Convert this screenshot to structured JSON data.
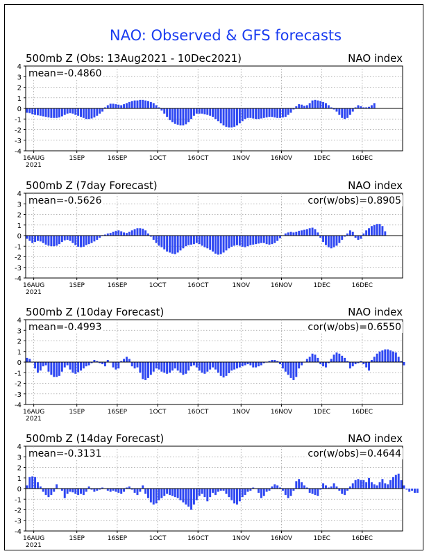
{
  "title": "NAO: Observed & GFS forecasts",
  "colors": {
    "bar": "#2f48f2",
    "title": "#1a3cf0",
    "grid": "#9a9a9a",
    "zero_line": "#000000"
  },
  "chart_data": [
    {
      "type": "bar",
      "panel_title": "500mb Z (Obs: 13Aug2021 - 10Dec2021)",
      "index_label": "NAO index",
      "mean_label": "mean=-0.4860",
      "cor_label": "",
      "x_start": "2021-08-13",
      "x_end": "2021-12-31",
      "ylim": [
        -4,
        4
      ],
      "yticks": [
        "4",
        "3",
        "2",
        "1",
        "0",
        "-1",
        "-2",
        "-3",
        "-4"
      ],
      "xtick_labels": [
        "16AUG",
        "1SEP",
        "16SEP",
        "1OCT",
        "16OCT",
        "1NOV",
        "16NOV",
        "1DEC",
        "16DEC"
      ],
      "x_year_label": "2021",
      "grid": true,
      "values": [
        -0.4,
        -0.45,
        -0.55,
        -0.6,
        -0.65,
        -0.7,
        -0.75,
        -0.8,
        -0.85,
        -0.9,
        -0.9,
        -0.9,
        -0.85,
        -0.75,
        -0.6,
        -0.5,
        -0.45,
        -0.5,
        -0.6,
        -0.7,
        -0.8,
        -0.9,
        -1.0,
        -1.0,
        -0.95,
        -0.85,
        -0.7,
        -0.5,
        -0.3,
        0.1,
        0.3,
        0.45,
        0.45,
        0.4,
        0.35,
        0.3,
        0.4,
        0.5,
        0.6,
        0.7,
        0.75,
        0.75,
        0.8,
        0.8,
        0.75,
        0.7,
        0.6,
        0.5,
        0.3,
        0.1,
        -0.2,
        -0.5,
        -0.8,
        -1.1,
        -1.3,
        -1.45,
        -1.55,
        -1.6,
        -1.6,
        -1.5,
        -1.3,
        -1.0,
        -0.7,
        -0.5,
        -0.5,
        -0.5,
        -0.55,
        -0.6,
        -0.7,
        -0.8,
        -1.0,
        -1.2,
        -1.4,
        -1.6,
        -1.75,
        -1.8,
        -1.8,
        -1.75,
        -1.6,
        -1.4,
        -1.2,
        -1.0,
        -0.9,
        -0.9,
        -0.95,
        -1.0,
        -1.0,
        -0.95,
        -0.9,
        -0.85,
        -0.8,
        -0.8,
        -0.85,
        -0.9,
        -0.9,
        -0.85,
        -0.8,
        -0.6,
        -0.4,
        -0.1,
        0.2,
        0.4,
        0.35,
        0.25,
        0.3,
        0.5,
        0.75,
        0.8,
        0.75,
        0.7,
        0.6,
        0.5,
        0.3,
        0.1,
        -0.1,
        -0.3,
        -0.6,
        -0.9,
        -1.0,
        -0.9,
        -0.6,
        -0.3,
        0.1,
        0.3,
        0.2,
        0.1,
        0.1,
        0.15,
        0.3,
        0.5
      ]
    },
    {
      "type": "bar",
      "panel_title": "500mb Z (7day Forecast)",
      "index_label": "NAO index",
      "mean_label": "mean=-0.5626",
      "cor_label": "cor(w/obs)=0.8905",
      "x_start": "2021-08-13",
      "x_end": "2021-12-31",
      "ylim": [
        -4,
        4
      ],
      "yticks": [
        "4",
        "3",
        "2",
        "1",
        "0",
        "-1",
        "-2",
        "-3",
        "-4"
      ],
      "xtick_labels": [
        "16AUG",
        "1SEP",
        "16SEP",
        "1OCT",
        "16OCT",
        "1NOV",
        "16NOV",
        "1DEC",
        "16DEC"
      ],
      "x_year_label": "2021",
      "grid": true,
      "values": [
        -0.3,
        -0.5,
        -0.7,
        -0.6,
        -0.5,
        -0.55,
        -0.7,
        -0.85,
        -0.95,
        -1.0,
        -1.0,
        -0.95,
        -0.8,
        -0.6,
        -0.45,
        -0.4,
        -0.5,
        -0.7,
        -0.9,
        -1.05,
        -1.1,
        -1.05,
        -0.9,
        -0.8,
        -0.7,
        -0.55,
        -0.4,
        -0.2,
        0.05,
        0.1,
        0.2,
        0.25,
        0.35,
        0.45,
        0.5,
        0.4,
        0.3,
        0.25,
        0.35,
        0.5,
        0.6,
        0.7,
        0.7,
        0.65,
        0.5,
        0.2,
        -0.1,
        -0.4,
        -0.7,
        -0.95,
        -1.1,
        -1.3,
        -1.5,
        -1.6,
        -1.7,
        -1.75,
        -1.6,
        -1.4,
        -1.2,
        -1.0,
        -0.9,
        -0.85,
        -0.8,
        -0.7,
        -0.8,
        -0.95,
        -1.1,
        -1.2,
        -1.35,
        -1.5,
        -1.7,
        -1.8,
        -1.75,
        -1.6,
        -1.4,
        -1.2,
        -1.05,
        -0.95,
        -0.9,
        -0.95,
        -1.05,
        -1.1,
        -1.0,
        -0.9,
        -0.85,
        -0.8,
        -0.75,
        -0.7,
        -0.7,
        -0.8,
        -0.85,
        -0.8,
        -0.7,
        -0.5,
        -0.25,
        0.0,
        0.2,
        0.3,
        0.35,
        0.3,
        0.35,
        0.45,
        0.5,
        0.55,
        0.6,
        0.7,
        0.75,
        0.6,
        0.3,
        -0.2,
        -0.6,
        -0.9,
        -1.1,
        -1.2,
        -1.1,
        -0.95,
        -0.7,
        -0.4,
        -0.1,
        0.2,
        0.5,
        0.35,
        -0.2,
        -0.4,
        -0.3,
        0.2,
        0.5,
        0.7,
        0.9,
        1.0,
        1.1,
        1.1,
        0.9,
        0.4
      ]
    },
    {
      "type": "bar",
      "panel_title": "500mb Z (10day Forecast)",
      "index_label": "NAO index",
      "mean_label": "mean=-0.4993",
      "cor_label": "cor(w/obs)=0.6550",
      "x_start": "2021-08-13",
      "x_end": "2021-12-31",
      "ylim": [
        -4,
        4
      ],
      "yticks": [
        "4",
        "3",
        "2",
        "1",
        "0",
        "-1",
        "-2",
        "-3",
        "-4"
      ],
      "xtick_labels": [
        "16AUG",
        "1SEP",
        "16SEP",
        "1OCT",
        "16OCT",
        "1NOV",
        "16NOV",
        "1DEC",
        "16DEC"
      ],
      "x_year_label": "2021",
      "grid": true,
      "values": [
        0.4,
        0.3,
        0.0,
        -0.6,
        -1.0,
        -0.8,
        -0.4,
        -0.3,
        -0.9,
        -1.2,
        -1.4,
        -1.4,
        -1.3,
        -0.9,
        -0.5,
        -0.3,
        -0.7,
        -1.0,
        -1.1,
        -0.95,
        -0.8,
        -0.6,
        -0.4,
        -0.3,
        -0.1,
        0.2,
        0.1,
        -0.1,
        -0.2,
        -0.4,
        0.2,
        0.0,
        -0.5,
        -0.7,
        -0.6,
        0.1,
        0.3,
        0.5,
        0.3,
        -0.4,
        -0.6,
        -0.5,
        -1.0,
        -1.6,
        -1.7,
        -1.5,
        -1.2,
        -0.9,
        -0.6,
        -0.7,
        -0.9,
        -1.0,
        -1.1,
        -1.0,
        -0.8,
        -0.6,
        -0.8,
        -1.0,
        -1.2,
        -1.1,
        -0.8,
        -0.4,
        -0.3,
        -0.5,
        -0.8,
        -1.0,
        -1.1,
        -0.9,
        -0.7,
        -0.5,
        -0.7,
        -1.0,
        -1.3,
        -1.45,
        -1.3,
        -1.05,
        -0.8,
        -0.7,
        -0.6,
        -0.5,
        -0.4,
        -0.3,
        -0.2,
        -0.3,
        -0.5,
        -0.5,
        -0.4,
        -0.3,
        -0.1,
        0.0,
        0.1,
        0.2,
        0.2,
        0.1,
        -0.2,
        -0.6,
        -0.9,
        -1.2,
        -1.5,
        -1.7,
        -1.4,
        -0.6,
        -0.3,
        0.0,
        0.3,
        0.5,
        0.8,
        0.7,
        0.4,
        -0.2,
        -0.4,
        -0.5,
        -0.1,
        0.3,
        0.7,
        0.9,
        0.8,
        0.6,
        0.4,
        0.1,
        -0.6,
        -0.4,
        -0.2,
        -0.1,
        0.1,
        -0.2,
        -0.5,
        -0.8,
        0.2,
        0.5,
        0.8,
        1.0,
        1.1,
        1.2,
        1.2,
        1.1,
        1.0,
        0.9,
        0.5,
        0.1,
        -0.3
      ]
    },
    {
      "type": "bar",
      "panel_title": "500mb Z (14day Forecast)",
      "index_label": "NAO index",
      "mean_label": "mean=-0.3131",
      "cor_label": "cor(w/obs)=0.4644",
      "x_start": "2021-08-13",
      "x_end": "2021-12-31",
      "ylim": [
        -4,
        4
      ],
      "yticks": [
        "4",
        "3",
        "2",
        "1",
        "0",
        "-1",
        "-2",
        "-3",
        "-4"
      ],
      "xtick_labels": [
        "16AUG",
        "1SEP",
        "16SEP",
        "1OCT",
        "16OCT",
        "1NOV",
        "16NOV",
        "1DEC",
        "16DEC"
      ],
      "x_year_label": "2021",
      "grid": true,
      "values": [
        0.3,
        1.1,
        1.15,
        1.1,
        0.6,
        0.2,
        -0.3,
        -0.6,
        -0.8,
        -0.6,
        -0.3,
        0.4,
        0.0,
        -0.2,
        -0.9,
        -0.5,
        -0.3,
        -0.35,
        -0.5,
        -0.6,
        -0.5,
        -0.6,
        -0.3,
        0.2,
        -0.1,
        -0.3,
        -0.2,
        -0.1,
        0.1,
        0.0,
        -0.2,
        -0.3,
        -0.2,
        -0.3,
        -0.4,
        -0.5,
        -0.3,
        0.1,
        0.2,
        -0.1,
        -0.4,
        -0.6,
        -0.3,
        0.3,
        -0.5,
        -0.9,
        -1.3,
        -1.5,
        -1.4,
        -1.1,
        -0.9,
        -0.7,
        -0.5,
        -0.6,
        -0.7,
        -0.8,
        -0.9,
        -1.1,
        -1.3,
        -1.5,
        -1.7,
        -2.0,
        -1.5,
        -1.1,
        -0.7,
        -0.5,
        -0.8,
        -1.2,
        -0.8,
        -0.4,
        -0.6,
        -0.3,
        -0.2,
        -0.2,
        -0.5,
        -0.8,
        -1.1,
        -1.4,
        -1.5,
        -1.2,
        -0.8,
        -0.6,
        -0.3,
        -0.2,
        0.1,
        0.0,
        -0.4,
        -0.9,
        -0.7,
        -0.3,
        -0.2,
        0.2,
        0.4,
        0.3,
        0.1,
        -0.2,
        -0.6,
        -0.9,
        -0.7,
        -0.2,
        0.7,
        0.9,
        0.6,
        0.3,
        0.1,
        -0.4,
        -0.5,
        -0.6,
        -0.7,
        -0.1,
        0.5,
        0.3,
        0.1,
        0.2,
        0.5,
        0.2,
        -0.2,
        -0.5,
        -0.6,
        -0.2,
        0.2,
        0.5,
        0.8,
        0.9,
        0.8,
        0.8,
        0.6,
        1.0,
        0.6,
        0.4,
        0.3,
        0.6,
        0.9,
        0.5,
        0.4,
        0.8,
        1.1,
        1.3,
        1.4,
        0.8,
        0.3,
        -0.1,
        -0.3,
        -0.2,
        -0.4,
        -0.4
      ]
    }
  ]
}
